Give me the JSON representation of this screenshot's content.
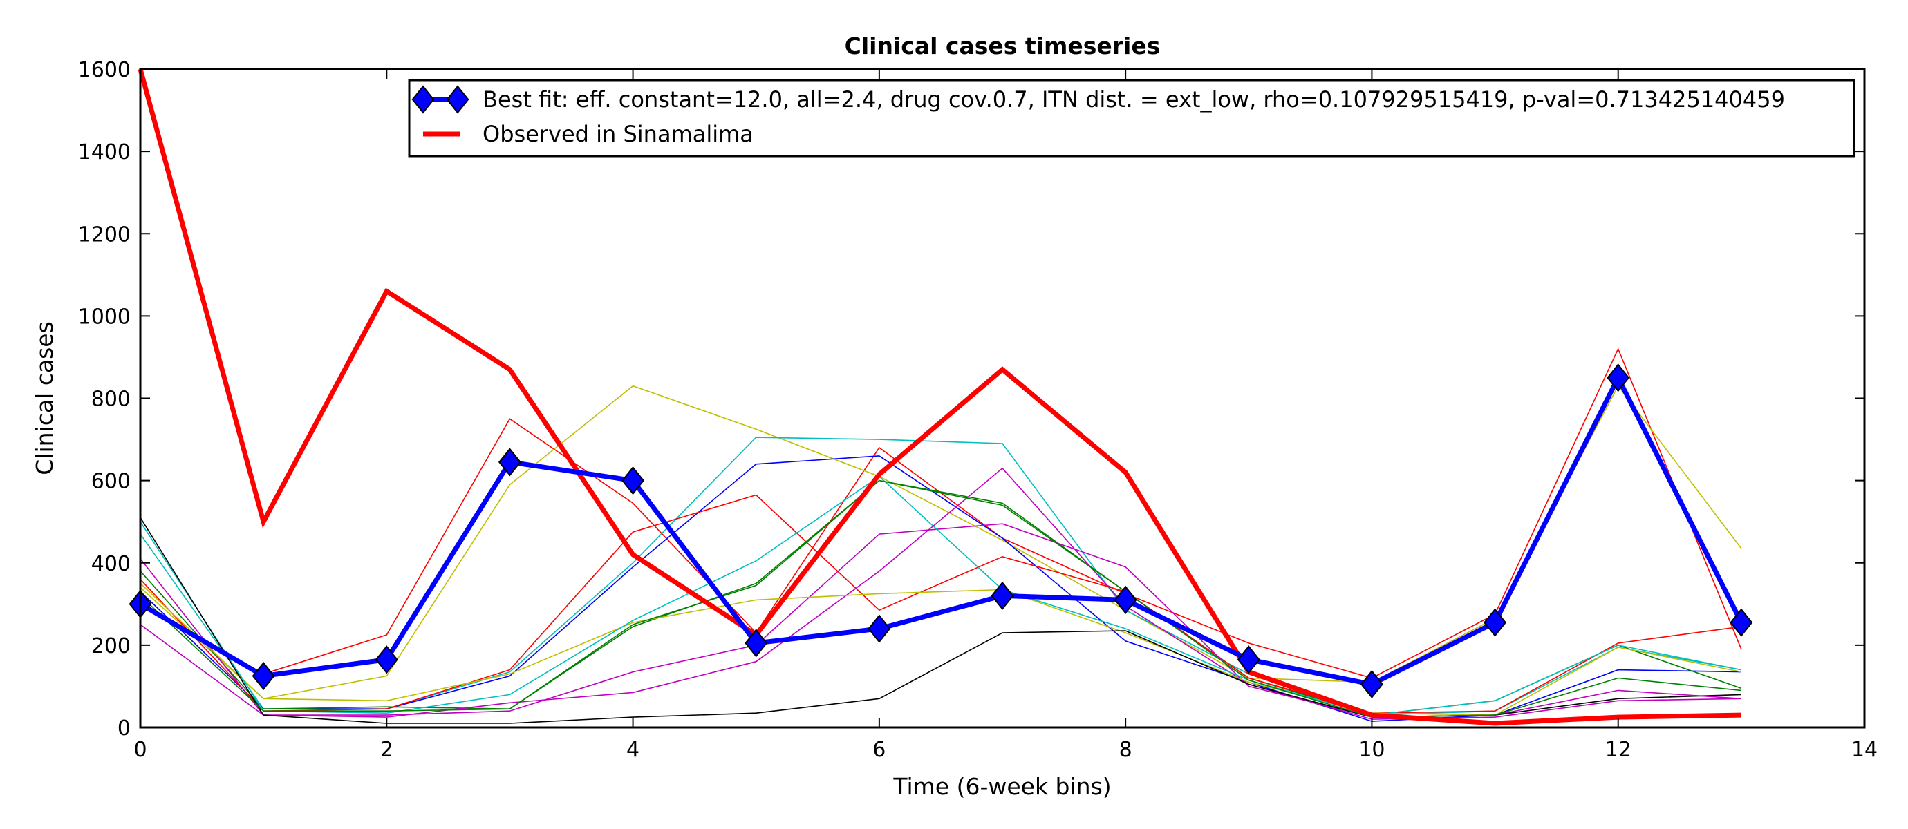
{
  "chart_data": {
    "type": "line",
    "title": "Clinical cases timeseries",
    "xlabel": "Time (6-week bins)",
    "ylabel": "Clinical cases",
    "xlim": [
      0,
      14
    ],
    "ylim": [
      0,
      1600
    ],
    "xticks": [
      0,
      2,
      4,
      6,
      8,
      10,
      12,
      14
    ],
    "yticks": [
      0,
      200,
      400,
      600,
      800,
      1000,
      1200,
      1400,
      1600
    ],
    "grid": false,
    "legend_position": "top-right",
    "x": [
      0,
      1,
      2,
      3,
      4,
      5,
      6,
      7,
      8,
      9,
      10,
      11,
      12,
      13
    ],
    "series": [
      {
        "name": "Best fit: eff. constant=12.0, all=2.4, drug cov.0.7, ITN dist. = ext_low, rho=0.107929515419, p-val=0.713425140459",
        "color": "#0000ff",
        "marker": "diamond",
        "width": "thick",
        "values": [
          300,
          125,
          165,
          645,
          600,
          205,
          240,
          320,
          310,
          165,
          105,
          255,
          850,
          255
        ]
      },
      {
        "name": "Observed in Sinamalima",
        "color": "#ff0000",
        "width": "thick",
        "values": [
          1600,
          500,
          1060,
          870,
          420,
          225,
          615,
          870,
          620,
          135,
          30,
          10,
          25,
          30
        ]
      },
      {
        "color": "#ff0000",
        "values": [
          300,
          130,
          225,
          750,
          545,
          230,
          680,
          460,
          325,
          205,
          120,
          275,
          920,
          190
        ]
      },
      {
        "color": "#bfbf00",
        "values": [
          340,
          70,
          125,
          590,
          830,
          725,
          610,
          455,
          285,
          120,
          110,
          265,
          830,
          435
        ]
      },
      {
        "color": "#00bfbf",
        "values": [
          470,
          45,
          45,
          135,
          400,
          705,
          700,
          690,
          285,
          130,
          30,
          40,
          195,
          140
        ]
      },
      {
        "color": "#0000ff",
        "values": [
          330,
          45,
          45,
          125,
          390,
          640,
          660,
          460,
          210,
          110,
          15,
          30,
          140,
          135
        ]
      },
      {
        "color": "#008000",
        "values": [
          380,
          45,
          50,
          45,
          245,
          350,
          600,
          545,
          330,
          120,
          30,
          65,
          200,
          95
        ]
      },
      {
        "color": "#ff0000",
        "values": [
          360,
          40,
          45,
          140,
          475,
          565,
          285,
          415,
          330,
          120,
          35,
          40,
          205,
          245
        ]
      },
      {
        "color": "#bf00bf",
        "values": [
          410,
          30,
          30,
          40,
          135,
          200,
          470,
          495,
          390,
          100,
          25,
          30,
          90,
          70
        ]
      },
      {
        "color": "#bf00bf",
        "values": [
          250,
          30,
          25,
          60,
          85,
          160,
          380,
          630,
          295,
          105,
          20,
          25,
          65,
          70
        ]
      },
      {
        "color": "#bfbf00",
        "values": [
          350,
          70,
          65,
          130,
          255,
          310,
          325,
          335,
          230,
          110,
          35,
          30,
          195,
          135
        ]
      },
      {
        "color": "#00bfbf",
        "values": [
          500,
          40,
          35,
          80,
          260,
          405,
          610,
          335,
          240,
          115,
          30,
          65,
          200,
          140
        ]
      },
      {
        "color": "#000000",
        "values": [
          510,
          30,
          10,
          10,
          25,
          35,
          70,
          230,
          235,
          105,
          25,
          30,
          70,
          80
        ]
      },
      {
        "color": "#008000",
        "values": [
          320,
          40,
          40,
          45,
          250,
          345,
          600,
          540,
          330,
          115,
          25,
          30,
          120,
          90
        ]
      }
    ]
  }
}
